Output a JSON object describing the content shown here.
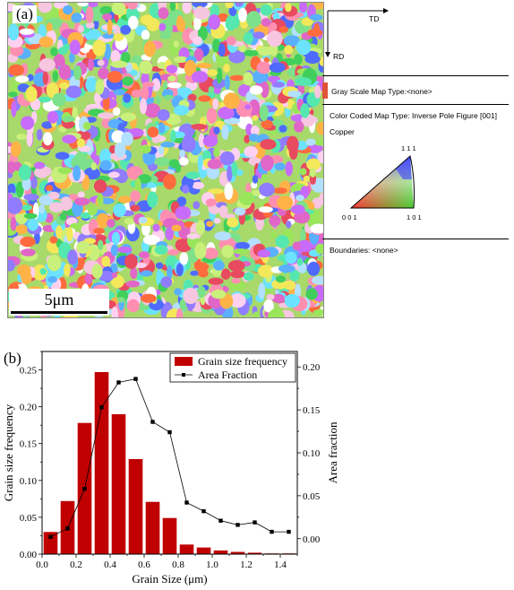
{
  "panel_a": {
    "label": "(a)",
    "scale_bar": "5μm",
    "td_label": "TD",
    "rd_label": "RD",
    "gray_scale_map": "Gray Scale Map Type:<none>",
    "color_coded_map": "Color Coded Map Type: Inverse Pole Figure [001]",
    "material": "Copper",
    "ipf_111": "1 1 1",
    "ipf_001": "0 0 1",
    "ipf_101": "1 0 1",
    "boundaries": "Boundaries: <none>"
  },
  "panel_b": {
    "label": "(b)"
  },
  "chart_data": {
    "type": "bar",
    "xlabel": "Grain Size (μm)",
    "ylabel": "Grain size frequency",
    "y2label": "Area fraction",
    "xlim": [
      0.0,
      1.5
    ],
    "ylim": [
      0.0,
      0.275
    ],
    "y2lim": [
      -0.018,
      0.218
    ],
    "xticks": [
      "0.0",
      "0.2",
      "0.4",
      "0.6",
      "0.8",
      "1.0",
      "1.2",
      "1.4"
    ],
    "yticks": [
      "0.00",
      "0.05",
      "0.10",
      "0.15",
      "0.20",
      "0.25"
    ],
    "y2ticks": [
      "0.00",
      "0.05",
      "0.10",
      "0.15",
      "0.20"
    ],
    "legend_position": "top-right",
    "grid": false,
    "colors": {
      "bar": "#c00000",
      "line": "#000000"
    },
    "series": [
      {
        "name": "Grain size frequency",
        "type": "bar",
        "x": [
          0.05,
          0.15,
          0.25,
          0.35,
          0.45,
          0.55,
          0.65,
          0.75,
          0.85,
          0.95,
          1.05,
          1.15,
          1.25,
          1.35,
          1.45
        ],
        "values": [
          0.03,
          0.072,
          0.178,
          0.247,
          0.19,
          0.129,
          0.071,
          0.049,
          0.013,
          0.009,
          0.005,
          0.003,
          0.002,
          0.001,
          0.001
        ]
      },
      {
        "name": "Area Fraction",
        "type": "line",
        "x": [
          0.05,
          0.15,
          0.25,
          0.35,
          0.45,
          0.55,
          0.65,
          0.75,
          0.85,
          0.95,
          1.05,
          1.15,
          1.25,
          1.35,
          1.45
        ],
        "values": [
          0.002,
          0.012,
          0.058,
          0.153,
          0.182,
          0.186,
          0.136,
          0.124,
          0.042,
          0.032,
          0.021,
          0.016,
          0.019,
          0.008,
          0.008
        ]
      }
    ]
  }
}
